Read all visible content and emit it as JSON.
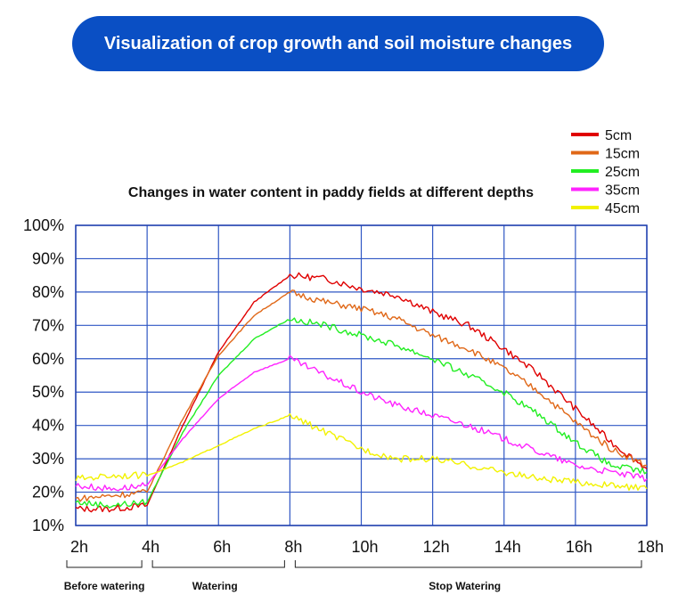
{
  "header": {
    "title": "Visualization of crop growth and soil moisture changes"
  },
  "chart_data": {
    "type": "line",
    "title": "Changes in water content in paddy fields at different depths",
    "xlabel": "",
    "ylabel": "",
    "x": [
      2,
      3,
      4,
      5,
      6,
      7,
      8,
      9,
      10,
      11,
      12,
      13,
      14,
      15,
      16,
      17,
      18
    ],
    "x_tick_labels": [
      "2h",
      "4h",
      "6h",
      "8h",
      "10h",
      "12h",
      "14h",
      "16h",
      "18h"
    ],
    "y_tick_labels": [
      "10%",
      "20%",
      "30%",
      "40%",
      "50%",
      "60%",
      "70%",
      "80%",
      "90%",
      "100%"
    ],
    "xlim": [
      2,
      18
    ],
    "ylim": [
      10,
      100
    ],
    "grid": true,
    "legend_position": "top-right",
    "series": [
      {
        "name": "5cm",
        "color": "#e00000",
        "values": [
          15,
          15,
          16,
          40,
          62,
          77,
          85,
          84,
          81,
          79,
          74,
          70,
          63,
          55,
          45,
          35,
          27
        ]
      },
      {
        "name": "15cm",
        "color": "#e06818",
        "values": [
          18,
          19,
          20,
          42,
          61,
          73,
          80,
          77,
          75,
          72,
          67,
          63,
          57,
          50,
          41,
          33,
          28
        ]
      },
      {
        "name": "25cm",
        "color": "#22ee22",
        "values": [
          17,
          16,
          17,
          38,
          55,
          66,
          72,
          70,
          67,
          64,
          60,
          55,
          50,
          43,
          35,
          28,
          26
        ]
      },
      {
        "name": "35cm",
        "color": "#ff22ff",
        "values": [
          22,
          21,
          22,
          36,
          48,
          56,
          60,
          55,
          50,
          46,
          43,
          40,
          36,
          32,
          28,
          26,
          24
        ]
      },
      {
        "name": "45cm",
        "color": "#f2f200",
        "values": [
          24,
          25,
          25,
          29,
          34,
          39,
          43,
          38,
          33,
          30,
          30,
          28,
          26,
          24,
          23,
          22,
          21
        ]
      }
    ],
    "phases": [
      {
        "label": "Before watering",
        "from": 2,
        "to": 4
      },
      {
        "label": "Watering",
        "from": 4,
        "to": 8
      },
      {
        "label": "Stop Watering",
        "from": 8,
        "to": 18
      }
    ]
  }
}
